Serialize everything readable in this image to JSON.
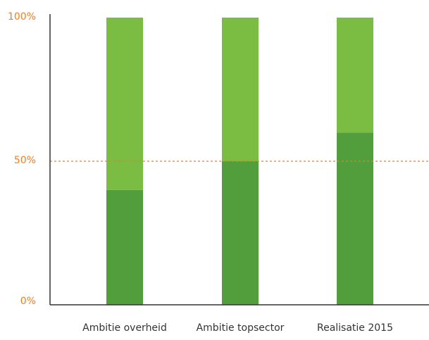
{
  "colors": {
    "series_bottom": "#529e3c",
    "series_top": "#7bbd42",
    "reference_line": "#ef7d22",
    "tick_label": "#ef7d22",
    "axis": "#333333"
  },
  "chart_data": {
    "type": "bar",
    "stacked": true,
    "title": "",
    "xlabel": "",
    "ylabel": "",
    "ylim": [
      0,
      100
    ],
    "y_ticks": [
      {
        "value": 0,
        "label": "0%"
      },
      {
        "value": 50,
        "label": "50%"
      },
      {
        "value": 100,
        "label": "100%"
      }
    ],
    "categories": [
      "Ambitie overheid",
      "Ambitie topsector",
      "Realisatie 2015"
    ],
    "series": [
      {
        "values": [
          40,
          50,
          60
        ],
        "color": "#529e3c"
      },
      {
        "values": [
          60,
          50,
          40
        ],
        "color": "#7bbd42"
      }
    ],
    "reference_line": {
      "value": 50,
      "style": "dashed",
      "color": "#ef7d22"
    },
    "grid": false,
    "legend": "none"
  }
}
